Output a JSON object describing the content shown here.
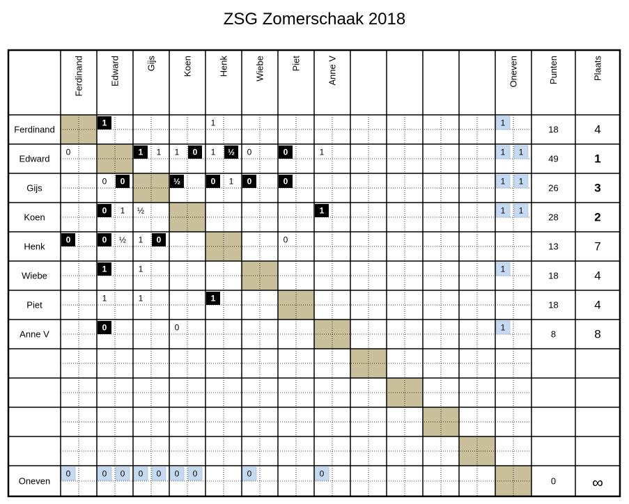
{
  "title": "ZSG Zomerschaak 2018",
  "colors": {
    "diagonal": "#c9bf9b",
    "black_cell": "#000000",
    "black_cell_text": "#ffffff",
    "bye_cell": "#c5d9f1",
    "grid_line": "#000000"
  },
  "header": {
    "player_columns": [
      "Ferdinand",
      "Edward",
      "Gijs",
      "Koen",
      "Henk",
      "Wiebe",
      "Piet",
      "Anne V",
      "",
      "",
      "",
      ""
    ],
    "oneven": "Oneven",
    "punten": "Punten",
    "plaats": "Plaats"
  },
  "rows": [
    {
      "name": "Ferdinand",
      "punten": "18",
      "plaats": "4",
      "bold": false,
      "cells": [
        {
          "c": 1,
          "s": 0,
          "v": "1",
          "t": "b"
        },
        {
          "c": 4,
          "s": 0,
          "v": "1",
          "t": "w"
        },
        {
          "c": 12,
          "s": 0,
          "v": "1",
          "t": "g"
        }
      ]
    },
    {
      "name": "Edward",
      "punten": "49",
      "plaats": "1",
      "bold": true,
      "cells": [
        {
          "c": 0,
          "s": 0,
          "v": "0",
          "t": "w"
        },
        {
          "c": 2,
          "s": 0,
          "v": "1",
          "t": "b"
        },
        {
          "c": 2,
          "s": 1,
          "v": "1",
          "t": "w"
        },
        {
          "c": 3,
          "s": 0,
          "v": "1",
          "t": "w"
        },
        {
          "c": 3,
          "s": 1,
          "v": "0",
          "t": "b"
        },
        {
          "c": 4,
          "s": 0,
          "v": "1",
          "t": "w"
        },
        {
          "c": 4,
          "s": 1,
          "v": "½",
          "t": "b"
        },
        {
          "c": 5,
          "s": 0,
          "v": "0",
          "t": "w"
        },
        {
          "c": 6,
          "s": 0,
          "v": "0",
          "t": "b"
        },
        {
          "c": 7,
          "s": 0,
          "v": "1",
          "t": "w"
        },
        {
          "c": 12,
          "s": 0,
          "v": "1",
          "t": "g"
        },
        {
          "c": 12,
          "s": 1,
          "v": "1",
          "t": "g"
        }
      ]
    },
    {
      "name": "Gijs",
      "punten": "26",
      "plaats": "3",
      "bold": true,
      "cells": [
        {
          "c": 1,
          "s": 0,
          "v": "0",
          "t": "w"
        },
        {
          "c": 1,
          "s": 1,
          "v": "0",
          "t": "b"
        },
        {
          "c": 3,
          "s": 0,
          "v": "½",
          "t": "b"
        },
        {
          "c": 4,
          "s": 0,
          "v": "0",
          "t": "b"
        },
        {
          "c": 4,
          "s": 1,
          "v": "1",
          "t": "w"
        },
        {
          "c": 5,
          "s": 0,
          "v": "0",
          "t": "b"
        },
        {
          "c": 6,
          "s": 0,
          "v": "0",
          "t": "b"
        },
        {
          "c": 12,
          "s": 0,
          "v": "1",
          "t": "g"
        },
        {
          "c": 12,
          "s": 1,
          "v": "1",
          "t": "g"
        }
      ]
    },
    {
      "name": "Koen",
      "punten": "28",
      "plaats": "2",
      "bold": true,
      "cells": [
        {
          "c": 1,
          "s": 0,
          "v": "0",
          "t": "b"
        },
        {
          "c": 1,
          "s": 1,
          "v": "1",
          "t": "w"
        },
        {
          "c": 2,
          "s": 0,
          "v": "½",
          "t": "w"
        },
        {
          "c": 7,
          "s": 0,
          "v": "1",
          "t": "b"
        },
        {
          "c": 12,
          "s": 0,
          "v": "1",
          "t": "g"
        },
        {
          "c": 12,
          "s": 1,
          "v": "1",
          "t": "g"
        }
      ]
    },
    {
      "name": "Henk",
      "punten": "13",
      "plaats": "7",
      "bold": false,
      "cells": [
        {
          "c": 0,
          "s": 0,
          "v": "0",
          "t": "b"
        },
        {
          "c": 1,
          "s": 0,
          "v": "0",
          "t": "b"
        },
        {
          "c": 1,
          "s": 1,
          "v": "½",
          "t": "w"
        },
        {
          "c": 2,
          "s": 0,
          "v": "1",
          "t": "w"
        },
        {
          "c": 2,
          "s": 1,
          "v": "0",
          "t": "b"
        },
        {
          "c": 6,
          "s": 0,
          "v": "0",
          "t": "w"
        }
      ]
    },
    {
      "name": "Wiebe",
      "punten": "18",
      "plaats": "4",
      "bold": false,
      "cells": [
        {
          "c": 1,
          "s": 0,
          "v": "1",
          "t": "b"
        },
        {
          "c": 2,
          "s": 0,
          "v": "1",
          "t": "w"
        },
        {
          "c": 12,
          "s": 0,
          "v": "1",
          "t": "g"
        }
      ]
    },
    {
      "name": "Piet",
      "punten": "18",
      "plaats": "4",
      "bold": false,
      "cells": [
        {
          "c": 1,
          "s": 0,
          "v": "1",
          "t": "w"
        },
        {
          "c": 2,
          "s": 0,
          "v": "1",
          "t": "w"
        },
        {
          "c": 4,
          "s": 0,
          "v": "1",
          "t": "b"
        }
      ]
    },
    {
      "name": "Anne V",
      "punten": "8",
      "plaats": "8",
      "bold": false,
      "cells": [
        {
          "c": 1,
          "s": 0,
          "v": "0",
          "t": "b"
        },
        {
          "c": 3,
          "s": 0,
          "v": "0",
          "t": "w"
        },
        {
          "c": 12,
          "s": 0,
          "v": "1",
          "t": "g"
        }
      ]
    },
    {
      "name": "",
      "punten": "",
      "plaats": "",
      "bold": false,
      "cells": []
    },
    {
      "name": "",
      "punten": "",
      "plaats": "",
      "bold": false,
      "cells": []
    },
    {
      "name": "",
      "punten": "",
      "plaats": "",
      "bold": false,
      "cells": []
    },
    {
      "name": "",
      "punten": "",
      "plaats": "",
      "bold": false,
      "cells": []
    },
    {
      "name": "Oneven",
      "punten": "0",
      "plaats": "∞",
      "bold": false,
      "cells": [
        {
          "c": 0,
          "s": 0,
          "v": "0",
          "t": "g"
        },
        {
          "c": 1,
          "s": 0,
          "v": "0",
          "t": "g"
        },
        {
          "c": 1,
          "s": 1,
          "v": "0",
          "t": "g"
        },
        {
          "c": 2,
          "s": 0,
          "v": "0",
          "t": "g"
        },
        {
          "c": 2,
          "s": 1,
          "v": "0",
          "t": "g"
        },
        {
          "c": 3,
          "s": 0,
          "v": "0",
          "t": "g"
        },
        {
          "c": 3,
          "s": 1,
          "v": "0",
          "t": "g"
        },
        {
          "c": 5,
          "s": 0,
          "v": "0",
          "t": "g"
        },
        {
          "c": 7,
          "s": 0,
          "v": "0",
          "t": "g"
        }
      ]
    }
  ]
}
